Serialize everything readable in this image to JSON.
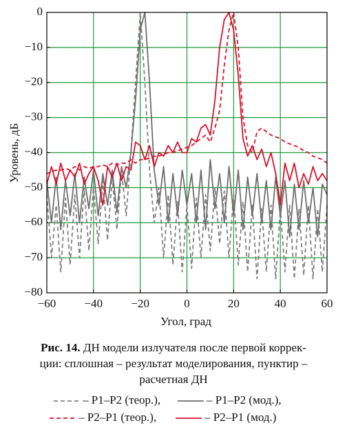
{
  "chart_data": {
    "type": "line",
    "xlabel": "Угол, град",
    "ylabel": "Уровень, дБ",
    "caption_label": "Рис. 14.",
    "caption_lines": [
      "ДН модели излучателя после первой коррек-",
      "ции: сплошная – результат моделирования, пунктир –",
      "расчетная ДН"
    ],
    "grid": true,
    "grid_color": "#1f9a3a",
    "xlim": [
      -60,
      60
    ],
    "ylim": [
      -80,
      0
    ],
    "xticks": [
      {
        "value": -60,
        "label": "−60"
      },
      {
        "value": -40,
        "label": "−40"
      },
      {
        "value": -20,
        "label": "−20"
      },
      0,
      20,
      40,
      60
    ],
    "yticks": [
      0,
      {
        "value": -10,
        "label": "−10"
      },
      {
        "value": -20,
        "label": "−20"
      },
      {
        "value": -30,
        "label": "−30"
      },
      {
        "value": -40,
        "label": "−40"
      },
      {
        "value": -50,
        "label": "−50"
      },
      {
        "value": -60,
        "label": "−60"
      },
      {
        "value": -70,
        "label": "−70"
      },
      {
        "value": -80,
        "label": "−80"
      }
    ],
    "x": [
      -60,
      -58,
      -56,
      -54,
      -52,
      -50,
      -48,
      -46,
      -44,
      -42,
      -40,
      -38,
      -36,
      -34,
      -32,
      -30,
      -28,
      -26,
      -24,
      -22,
      -20,
      -18,
      -16,
      -14,
      -12,
      -10,
      -8,
      -6,
      -4,
      -2,
      0,
      2,
      4,
      6,
      8,
      10,
      12,
      14,
      16,
      18,
      20,
      22,
      24,
      26,
      28,
      30,
      32,
      34,
      36,
      38,
      40,
      42,
      44,
      46,
      48,
      50,
      52,
      54,
      56,
      58,
      60
    ],
    "series": [
      {
        "name": "– Р1–Р2 (теор.),",
        "color": "#808080",
        "style": "dashed",
        "values": [
          -52,
          -70,
          -55,
          -74,
          -53,
          -72,
          -52,
          -70,
          -50,
          -68,
          -50,
          -66,
          -48,
          -65,
          -47,
          -62,
          -45,
          -58,
          -40,
          -20,
          0,
          -20,
          -45,
          -60,
          -50,
          -70,
          -52,
          -72,
          -54,
          -74,
          -55,
          -73,
          -53,
          -70,
          -52,
          -68,
          -50,
          -66,
          -51,
          -70,
          -52,
          -72,
          -54,
          -74,
          -55,
          -76,
          -56,
          -74,
          -55,
          -76,
          -56,
          -74,
          -55,
          -76,
          -56,
          -75,
          -55,
          -76,
          -56,
          -74,
          -55
        ]
      },
      {
        "name": "– Р1–Р2 (мод.),",
        "color": "#6e6e6e",
        "style": "solid",
        "values": [
          -48,
          -60,
          -47,
          -62,
          -48,
          -58,
          -46,
          -60,
          -47,
          -56,
          -45,
          -58,
          -46,
          -55,
          -45,
          -57,
          -44,
          -50,
          -40,
          -25,
          -5,
          0,
          -20,
          -45,
          -55,
          -44,
          -60,
          -46,
          -58,
          -45,
          -55,
          -46,
          -60,
          -45,
          -62,
          -42,
          -56,
          -46,
          -60,
          -44,
          -58,
          -45,
          -62,
          -47,
          -58,
          -46,
          -60,
          -48,
          -62,
          -47,
          -58,
          -48,
          -64,
          -49,
          -62,
          -48,
          -60,
          -50,
          -64,
          -49,
          -52
        ]
      },
      {
        "name": "– Р2–Р1 (теор.),",
        "color": "#d8102a",
        "style": "dashed",
        "values": [
          -46,
          -45.5,
          -45,
          -45,
          -44.5,
          -45,
          -44,
          -45,
          -44,
          -44.5,
          -44,
          -44,
          -43.5,
          -44,
          -43,
          -43.5,
          -43,
          -43,
          -42,
          -43,
          -42,
          -42,
          -41.5,
          -41,
          -41,
          -40.5,
          -40,
          -40,
          -39.5,
          -39,
          -38.5,
          -38,
          -37,
          -36,
          -35,
          -37,
          -33,
          -28,
          -15,
          -5,
          0,
          -10,
          -30,
          -38,
          -40,
          -34,
          -33,
          -34,
          -35,
          -35.5,
          -36,
          -37,
          -37.5,
          -38,
          -38.5,
          -39.5,
          -40,
          -41,
          -41.5,
          -42,
          -43
        ]
      },
      {
        "name": "– Р2–Р1 (мод.)",
        "color": "#d8102a",
        "style": "solid",
        "values": [
          -49,
          -44,
          -49,
          -43,
          -48,
          -45,
          -47,
          -43,
          -49,
          -46,
          -44,
          -48,
          -55,
          -44,
          -47,
          -43,
          -48,
          -44,
          -45,
          -37,
          -38,
          -42,
          -38,
          -44,
          -40,
          -41,
          -38,
          -40,
          -37,
          -40,
          -40,
          -36,
          -37,
          -33,
          -32,
          -35,
          -25,
          -10,
          -2,
          0,
          -5,
          -18,
          -36,
          -41,
          -38,
          -42,
          -39,
          -44,
          -40,
          -46,
          -55,
          -43,
          -48,
          -43,
          -50,
          -46,
          -49,
          -44,
          -48,
          -46,
          -48
        ]
      }
    ]
  }
}
